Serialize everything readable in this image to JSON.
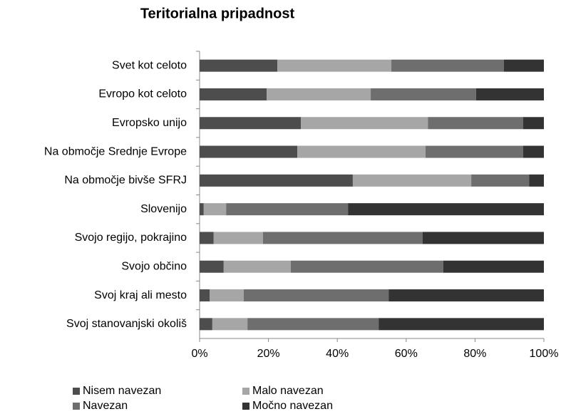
{
  "chart_data": {
    "type": "stacked-barh",
    "title": "Teritorialna pripadnost",
    "categories": [
      "Svet kot celoto",
      "Evropo kot celoto",
      "Evropsko unijo",
      "Na območje Srednje Evrope",
      "Na območje bivše SFRJ",
      "Slovenijo",
      "Svojo regijo, pokrajino",
      "Svojo občino",
      "Svoj kraj ali mesto",
      "Svoj stanovanjski okoliš"
    ],
    "series": [
      {
        "name": "Nisem navezan",
        "color": "#4d4d4d",
        "values": [
          22.6,
          19.5,
          29.4,
          28.4,
          44.5,
          1.2,
          4.1,
          7.0,
          2.9,
          3.7
        ]
      },
      {
        "name": "Malo navezan",
        "color": "#a6a6a6",
        "values": [
          33.1,
          30.2,
          36.9,
          37.2,
          34.4,
          6.5,
          14.3,
          19.5,
          9.9,
          10.2
        ]
      },
      {
        "name": "Navezan",
        "color": "#6e6e6e",
        "values": [
          32.7,
          30.6,
          27.7,
          28.4,
          16.8,
          35.4,
          46.4,
          44.3,
          42.1,
          38.1
        ]
      },
      {
        "name": "Močno navezan",
        "color": "#333333",
        "values": [
          11.6,
          19.7,
          6.0,
          6.0,
          4.3,
          56.9,
          35.2,
          29.2,
          45.1,
          48.0
        ]
      }
    ],
    "xlim": [
      0,
      100
    ],
    "xticks": [
      {
        "value": 0,
        "label": "0%"
      },
      {
        "value": 20,
        "label": "20%"
      },
      {
        "value": 40,
        "label": "40%"
      },
      {
        "value": 60,
        "label": "60%"
      },
      {
        "value": 80,
        "label": "80%"
      },
      {
        "value": 100,
        "label": "100%"
      }
    ],
    "legend": "bottom"
  }
}
